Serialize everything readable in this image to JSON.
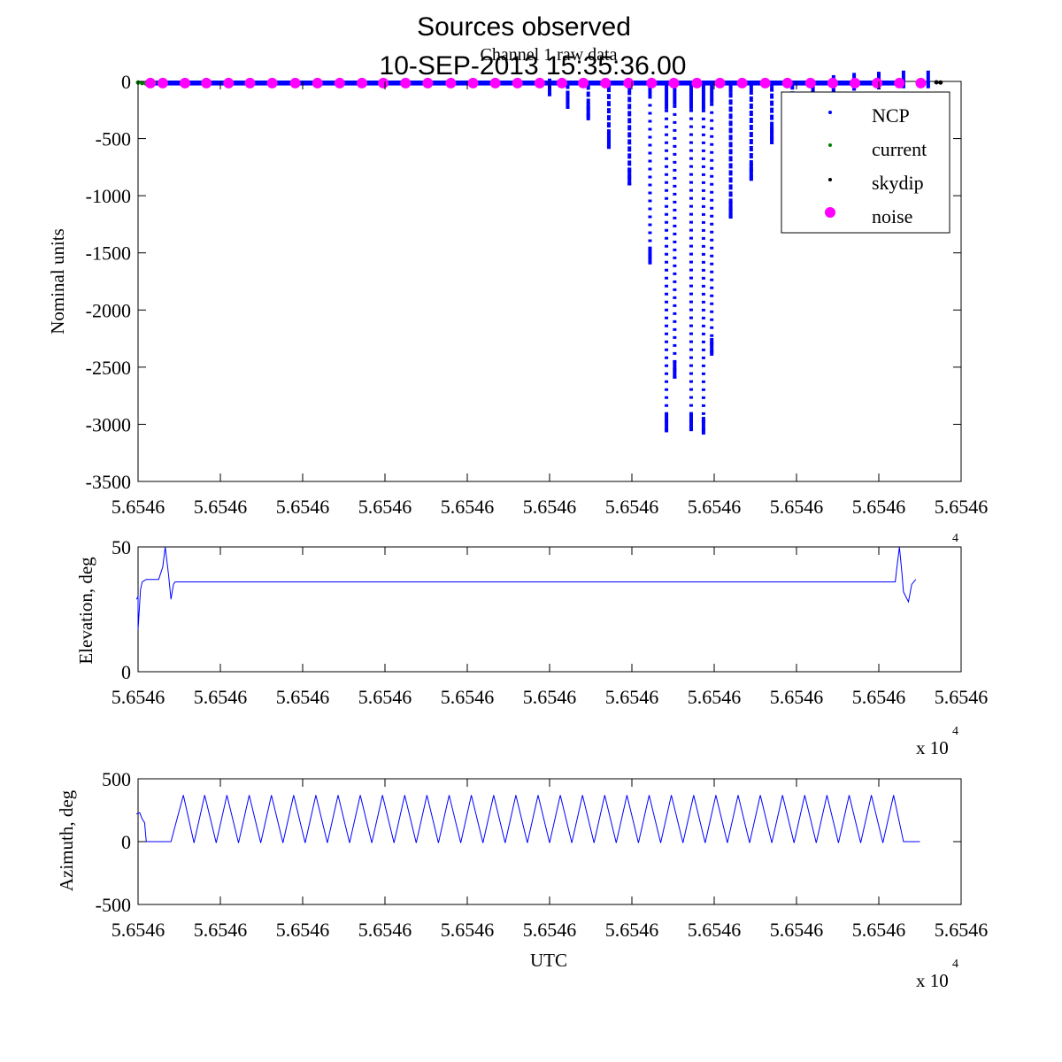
{
  "figure": {
    "title_line1": "Sources observed",
    "title_line2": "10-SEP-2013 15:35:36.00",
    "exponent_base": "x 10",
    "exponent_power": "4"
  },
  "chart_data": [
    {
      "id": "raw",
      "type": "scatter",
      "title": "Channel 1 raw data",
      "xlabel": "",
      "ylabel": "Nominal units",
      "xlim": [
        0,
        10
      ],
      "ylim": [
        -3500,
        0
      ],
      "x_tick_labels": [
        "5.6546",
        "5.6546",
        "5.6546",
        "5.6546",
        "5.6546",
        "5.6546",
        "5.6546",
        "5.6546",
        "5.6546",
        "5.6546",
        "5.6546"
      ],
      "y_ticks": [
        0,
        -500,
        -1000,
        -1500,
        -2000,
        -2500,
        -3000,
        -3500
      ],
      "y_tick_labels": [
        "0",
        "-500",
        "-1000",
        "-1500",
        "-2000",
        "-2500",
        "-3000",
        "-3500"
      ],
      "legend": {
        "placement": "top-right",
        "entries": [
          {
            "name": "NCP",
            "color": "#0000ff",
            "marker": "dot"
          },
          {
            "name": "current",
            "color": "#008000",
            "marker": "dot"
          },
          {
            "name": "skydip",
            "color": "#000000",
            "marker": "dot"
          },
          {
            "name": "noise",
            "color": "#ff00ff",
            "marker": "circle"
          }
        ]
      },
      "series": [
        {
          "name": "NCP",
          "color": "#0000ff",
          "baseline": [
            0.1,
            9.3
          ],
          "baseline_value": -20,
          "dips": [
            {
              "x": 9.6,
              "min": -60
            },
            {
              "x": 9.3,
              "min": -60
            },
            {
              "x": 9.0,
              "min": -70
            },
            {
              "x": 8.7,
              "min": -80
            },
            {
              "x": 8.45,
              "min": -100
            },
            {
              "x": 8.2,
              "min": -170
            },
            {
              "x": 7.95,
              "min": -320
            },
            {
              "x": 7.7,
              "min": -550
            },
            {
              "x": 7.45,
              "min": -870
            },
            {
              "x": 7.2,
              "min": -1200
            },
            {
              "x": 6.97,
              "min": -2400
            },
            {
              "x": 6.87,
              "min": -3090
            },
            {
              "x": 6.72,
              "min": -3060
            },
            {
              "x": 6.52,
              "min": -2600
            },
            {
              "x": 6.42,
              "min": -3070
            },
            {
              "x": 6.22,
              "min": -1600
            },
            {
              "x": 5.97,
              "min": -910
            },
            {
              "x": 5.72,
              "min": -590
            },
            {
              "x": 5.47,
              "min": -340
            },
            {
              "x": 5.22,
              "min": -240
            },
            {
              "x": 5.0,
              "min": -130
            }
          ]
        },
        {
          "name": "current",
          "color": "#008000",
          "x": [
            0.0,
            0.05,
            0.1,
            0.15,
            0.2
          ],
          "y": [
            -10,
            -15,
            -20,
            -15,
            -10
          ]
        },
        {
          "name": "skydip",
          "color": "#000000",
          "x": [
            9.7,
            9.75
          ],
          "y": [
            -8,
            -10
          ]
        },
        {
          "name": "noise",
          "color": "#ff00ff",
          "x": [
            0.15,
            0.3,
            0.57,
            0.83,
            1.1,
            1.36,
            1.63,
            1.91,
            2.18,
            2.45,
            2.72,
            2.98,
            3.25,
            3.52,
            3.8,
            4.07,
            4.34,
            4.61,
            4.88,
            5.15,
            5.41,
            5.68,
            5.96,
            6.24,
            6.51,
            6.79,
            7.07,
            7.34,
            7.62,
            7.89,
            8.17,
            8.44,
            8.71,
            8.98,
            9.25,
            9.51
          ],
          "y": [
            -15,
            -15,
            -15,
            -15,
            -15,
            -15,
            -15,
            -15,
            -15,
            -15,
            -15,
            -15,
            -15,
            -15,
            -15,
            -15,
            -15,
            -15,
            -15,
            -15,
            -15,
            -15,
            -15,
            -15,
            -15,
            -15,
            -15,
            -15,
            -15,
            -15,
            -15,
            -15,
            -15,
            -15,
            -15,
            -15
          ]
        }
      ]
    },
    {
      "id": "elev",
      "type": "line",
      "title": "",
      "xlabel": "",
      "ylabel": "Elevation, deg",
      "xlim": [
        0,
        10
      ],
      "ylim": [
        0,
        50
      ],
      "x_tick_labels": [
        "5.6546",
        "5.6546",
        "5.6546",
        "5.6546",
        "5.6546",
        "5.6546",
        "5.6546",
        "5.6546",
        "5.6546",
        "5.6546",
        "5.6546"
      ],
      "y_tick_labels": [
        "0",
        "50"
      ],
      "y_ticks": [
        0,
        50
      ],
      "series": [
        {
          "name": "",
          "color": "#0000ff",
          "x": [
            -0.02,
            0.0,
            0.0,
            0.03,
            0.05,
            0.1,
            0.2,
            0.25,
            0.3,
            0.33,
            0.37,
            0.4,
            0.43,
            0.45,
            0.5,
            9.18,
            9.2,
            9.22,
            9.25,
            9.28,
            9.3,
            9.33,
            9.36,
            9.4,
            9.45
          ],
          "y": [
            29,
            30,
            17,
            33,
            36,
            37,
            37,
            37,
            42,
            50,
            39,
            29,
            35,
            36,
            36,
            36,
            36,
            42,
            50,
            40,
            32,
            30,
            28,
            35,
            37
          ]
        }
      ]
    },
    {
      "id": "az",
      "type": "line",
      "title": "",
      "xlabel": "UTC",
      "ylabel": "Azimuth, deg",
      "xlim": [
        0,
        10
      ],
      "ylim": [
        -500,
        500
      ],
      "x_tick_labels": [
        "5.6546",
        "5.6546",
        "5.6546",
        "5.6546",
        "5.6546",
        "5.6546",
        "5.6546",
        "5.6546",
        "5.6546",
        "5.6546",
        "5.6546"
      ],
      "y_tick_labels": [
        "-500",
        "0",
        "500"
      ],
      "y_ticks": [
        -500,
        0,
        500
      ],
      "series": [
        {
          "name": "",
          "color": "#0000ff",
          "x": [
            -0.02,
            0.02,
            0.05,
            0.08,
            0.1,
            0.15,
            0.3,
            0.32,
            0.4,
            0.55,
            0.68,
            0.81,
            0.95,
            1.08,
            1.22,
            1.35,
            1.49,
            1.62,
            1.76,
            1.89,
            2.03,
            2.16,
            2.3,
            2.43,
            2.57,
            2.7,
            2.84,
            2.97,
            3.11,
            3.24,
            3.38,
            3.51,
            3.65,
            3.78,
            3.92,
            4.05,
            4.19,
            4.32,
            4.46,
            4.59,
            4.73,
            4.86,
            5.0,
            5.13,
            5.27,
            5.4,
            5.54,
            5.67,
            5.81,
            5.94,
            6.08,
            6.21,
            6.35,
            6.48,
            6.62,
            6.75,
            6.89,
            7.02,
            7.16,
            7.29,
            7.43,
            7.56,
            7.7,
            7.83,
            7.97,
            8.1,
            8.24,
            8.37,
            8.51,
            8.64,
            8.78,
            8.91,
            9.05,
            9.18,
            9.3,
            9.5
          ],
          "y": [
            220,
            230,
            180,
            150,
            0,
            0,
            0,
            0,
            0,
            370,
            -10,
            370,
            -10,
            370,
            -10,
            370,
            -10,
            370,
            -10,
            370,
            -10,
            370,
            -10,
            370,
            -10,
            370,
            -10,
            370,
            -10,
            370,
            -10,
            370,
            -10,
            370,
            -10,
            370,
            -10,
            370,
            -10,
            370,
            -10,
            370,
            -10,
            370,
            -10,
            370,
            -10,
            370,
            -10,
            370,
            -10,
            370,
            -10,
            370,
            -10,
            370,
            -10,
            370,
            -10,
            370,
            -10,
            370,
            -10,
            370,
            -10,
            370,
            -10,
            370,
            -10,
            370,
            -10,
            370,
            -10,
            370,
            0,
            0
          ]
        }
      ]
    }
  ]
}
